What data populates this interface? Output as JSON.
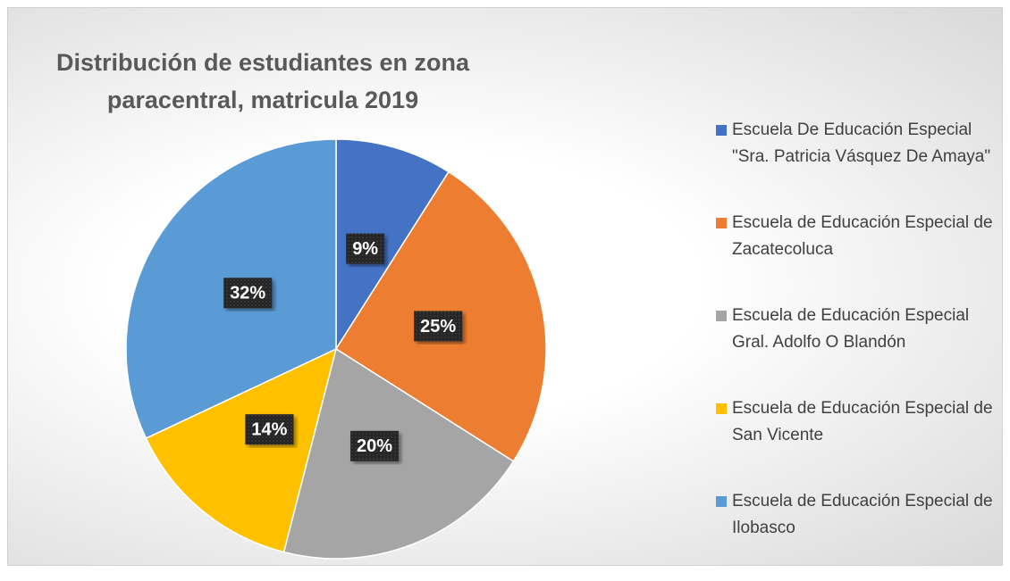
{
  "chart_data": {
    "type": "pie",
    "title": "Distribución de estudiantes en zona paracentral, matricula 2019",
    "categories": [
      "Escuela De Educación Especial \"Sra. Patricia Vásquez De Amaya\"",
      "Escuela de Educación Especial de Zacatecoluca",
      "Escuela de Educación Especial Gral. Adolfo O Blandón",
      "Escuela de Educación Especial de San Vicente",
      "Escuela de Educación Especial de Ilobasco"
    ],
    "values": [
      9,
      25,
      20,
      14,
      32
    ],
    "value_labels": [
      "9%",
      "25%",
      "20%",
      "14%",
      "32%"
    ],
    "colors": [
      "#4472c4",
      "#ed7d31",
      "#a5a5a5",
      "#ffc000",
      "#5b9bd5"
    ],
    "legend": "right"
  }
}
